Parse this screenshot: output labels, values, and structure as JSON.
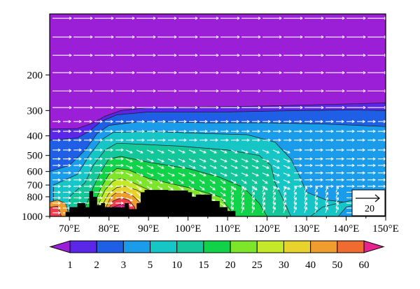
{
  "chart_data": {
    "type": "heatmap",
    "title": "",
    "xlabel": "",
    "ylabel": "",
    "x_ticks": [
      "70°E",
      "80°E",
      "90°E",
      "100°E",
      "110°E",
      "120°E",
      "130°E",
      "140°E",
      "150°E"
    ],
    "x_tick_values": [
      70,
      80,
      90,
      100,
      110,
      120,
      130,
      140,
      150
    ],
    "xlim": [
      65,
      150
    ],
    "y_ticks": [
      "200",
      "300",
      "400",
      "500",
      "600",
      "700",
      "800",
      "1000"
    ],
    "y_tick_values": [
      200,
      300,
      400,
      500,
      600,
      700,
      800,
      1000
    ],
    "ylim": [
      1000,
      100
    ],
    "y_scale": "log",
    "colorbar": {
      "levels": [
        1,
        2,
        3,
        5,
        10,
        15,
        20,
        25,
        30,
        40,
        50,
        60
      ],
      "labels": [
        "1",
        "2",
        "3",
        "5",
        "10",
        "15",
        "20",
        "25",
        "30",
        "40",
        "50",
        "60"
      ],
      "colors": [
        "#9a1fd6",
        "#5a26e8",
        "#1f5fe6",
        "#1a9cea",
        "#16c6c6",
        "#13c79a",
        "#11d34a",
        "#7ee62a",
        "#c3e928",
        "#e8d32c",
        "#ef9d2e",
        "#ef6b30",
        "#ef3f4c",
        "#e8238f"
      ],
      "extend": "both"
    },
    "vector_reference": {
      "label": "20",
      "direction": "east"
    },
    "terrain_color": "#000000"
  }
}
